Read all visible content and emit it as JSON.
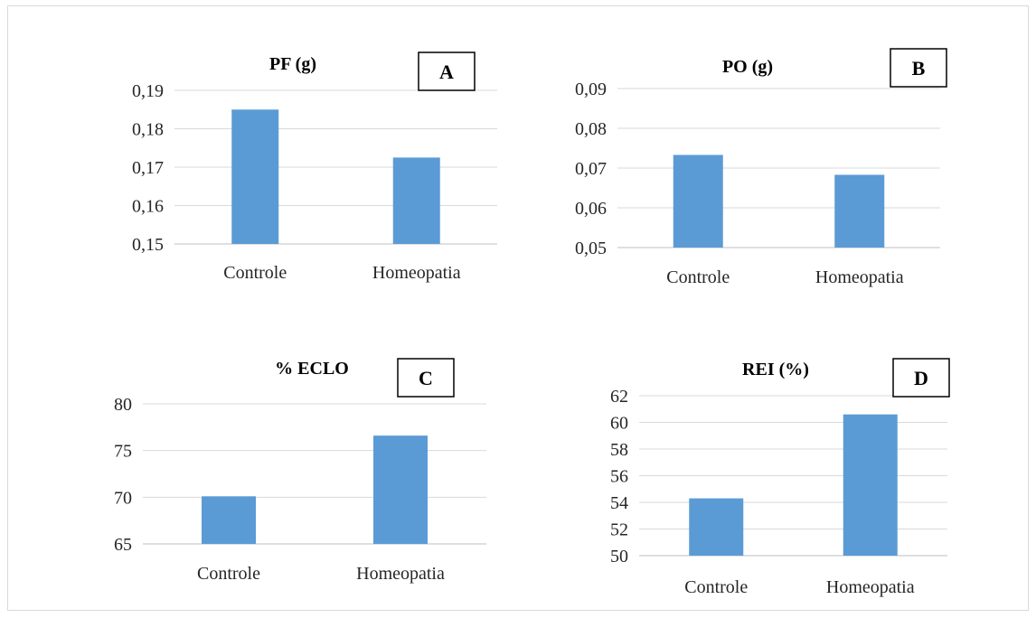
{
  "colors": {
    "bar": "#5b9bd5",
    "grid": "#d9d9d9"
  },
  "chart_data": [
    {
      "type": "bar",
      "panel": "A",
      "title": "PF (g)",
      "categories": [
        "Controle",
        "Homeopatia"
      ],
      "values": [
        0.185,
        0.1725
      ],
      "ylim": [
        0.15,
        0.19
      ],
      "yticks": [
        "0,15",
        "0,16",
        "0,17",
        "0,18",
        "0,19"
      ],
      "grid": true
    },
    {
      "type": "bar",
      "panel": "B",
      "title": "PO (g)",
      "categories": [
        "Controle",
        "Homeopatia"
      ],
      "values": [
        0.0733,
        0.0683
      ],
      "ylim": [
        0.05,
        0.09
      ],
      "yticks": [
        "0,05",
        "0,06",
        "0,07",
        "0,08",
        "0,09"
      ],
      "grid": true
    },
    {
      "type": "bar",
      "panel": "C",
      "title": "% ECLO",
      "categories": [
        "Controle",
        "Homeopatia"
      ],
      "values": [
        70.1,
        76.6
      ],
      "ylim": [
        65,
        80
      ],
      "yticks": [
        "65",
        "70",
        "75",
        "80"
      ],
      "grid": true
    },
    {
      "type": "bar",
      "panel": "D",
      "title": "REI (%)",
      "categories": [
        "Controle",
        "Homeopatia"
      ],
      "values": [
        54.3,
        60.6
      ],
      "ylim": [
        50,
        62
      ],
      "yticks": [
        "50",
        "52",
        "54",
        "56",
        "58",
        "60",
        "62"
      ],
      "grid": true
    }
  ]
}
